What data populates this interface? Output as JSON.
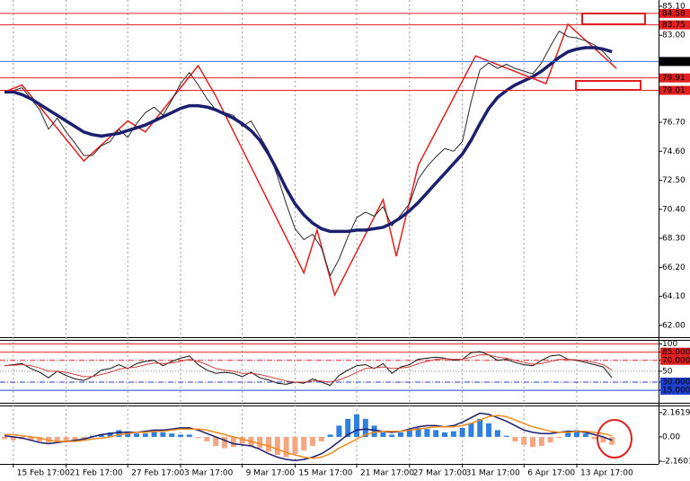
{
  "chart_data": [
    {
      "type": "line",
      "categories": [
        null,
        "15 Feb 17:00",
        null,
        null,
        null,
        null,
        null,
        "21 Feb 17:00",
        null,
        null,
        null,
        null,
        null,
        null,
        "27 Feb 17:00",
        null,
        null,
        null,
        null,
        null,
        "3 Mar 17:00",
        null,
        null,
        null,
        null,
        null,
        null,
        "9 Mar 17:00",
        null,
        null,
        null,
        null,
        null,
        "15 Mar 17:00",
        null,
        null,
        null,
        null,
        null,
        null,
        "21 Mar 17:00",
        null,
        null,
        null,
        null,
        null,
        "27 Mar 17:00",
        null,
        null,
        null,
        null,
        null,
        "31 Mar 17:00",
        null,
        null,
        null,
        null,
        null,
        null,
        "6 Apr 17:00",
        null,
        null,
        null,
        null,
        null,
        "13 Apr 17:00",
        null,
        null,
        null,
        null
      ],
      "ylim": [
        61.15,
        85.55
      ],
      "yticks": [
        {
          "value": 85.1,
          "label": "85.10"
        },
        {
          "value": 83,
          "label": "83.00"
        },
        {
          "value": 76.7,
          "label": "76.70"
        },
        {
          "value": 74.6,
          "label": "74.60"
        },
        {
          "value": 72.5,
          "label": "72.50"
        },
        {
          "value": 70.4,
          "label": "70.40"
        },
        {
          "value": 68.3,
          "label": "68.30"
        },
        {
          "value": 66.2,
          "label": "66.20"
        },
        {
          "value": 64.1,
          "label": "64.10"
        },
        {
          "value": 62,
          "label": "62.00"
        }
      ],
      "series": [
        {
          "color": "#2a2a2a",
          "width": 1,
          "values": [
            78.8,
            79.0,
            79.2,
            78.4,
            77.6,
            76.2,
            77.0,
            76.0,
            75.2,
            74.3,
            74.3,
            75.0,
            75.3,
            76.2,
            75.6,
            76.6,
            77.4,
            77.8,
            77.2,
            78.3,
            79.5,
            80.3,
            79.4,
            78.4,
            77.6,
            77.4,
            77.2,
            76.4,
            76.8,
            75.7,
            74.6,
            72.8,
            70.8,
            69.0,
            68.2,
            68.6,
            67.6,
            65.6,
            66.8,
            68.4,
            69.8,
            70.2,
            69.9,
            70.6,
            69.2,
            70.0,
            70.8,
            72.6,
            73.5,
            74.2,
            74.8,
            74.6,
            75.3,
            78.2,
            80.5,
            81.0,
            80.6,
            80.9,
            80.6,
            80.4,
            80.2,
            81.0,
            82.2,
            83.3,
            82.9,
            82.8,
            82.6,
            82.3,
            81.8,
            81.1
          ]
        },
        {
          "color": "#1b1f6e",
          "width": 3.5,
          "values": [
            78.9,
            78.9,
            78.7,
            78.4,
            78.0,
            77.6,
            77.2,
            76.8,
            76.4,
            76.0,
            75.8,
            75.7,
            75.8,
            75.9,
            76.1,
            76.3,
            76.5,
            76.8,
            77.1,
            77.4,
            77.7,
            77.9,
            77.9,
            77.8,
            77.6,
            77.3,
            77.0,
            76.6,
            76.1,
            75.4,
            74.4,
            73.2,
            71.9,
            70.8,
            70.0,
            69.4,
            69.0,
            68.8,
            68.8,
            68.8,
            68.9,
            68.9,
            69.0,
            69.1,
            69.4,
            69.8,
            70.3,
            70.9,
            71.6,
            72.3,
            73.0,
            73.7,
            74.4,
            75.4,
            76.6,
            77.7,
            78.5,
            79.0,
            79.4,
            79.7,
            80.0,
            80.4,
            80.9,
            81.4,
            81.8,
            82.0,
            82.1,
            82.1,
            82.0,
            81.8
          ]
        }
      ],
      "zigzag": {
        "color": "#e02020",
        "x": [
          0,
          2,
          9,
          14,
          16,
          22,
          24,
          34,
          35.5,
          37.5,
          43,
          44.5,
          47,
          53.5,
          61.5,
          64,
          69.5
        ],
        "values": [
          78.9,
          79.4,
          73.9,
          76.8,
          76.0,
          80.8,
          78.6,
          65.8,
          68.9,
          64.2,
          71.1,
          67.0,
          73.6,
          81.5,
          79.5,
          83.8,
          80.6
        ]
      },
      "levels": [
        {
          "value": 84.58,
          "label": "84.58"
        },
        {
          "value": 83.75,
          "label": "83.75"
        },
        {
          "value": 79.91,
          "label": "79.91"
        },
        {
          "value": 79.01,
          "label": "79.01"
        }
      ],
      "level_color": "#e02020",
      "current": {
        "value": 81.1,
        "label": "81.10",
        "color": "#4a6fd8"
      }
    },
    {
      "type": "line",
      "ylim": [
        -8,
        106
      ],
      "yticks": [
        100,
        {
          "value": 85,
          "label": "85.0000"
        },
        {
          "value": 70,
          "label": "70.0000"
        },
        50,
        {
          "value": 30,
          "label": "30.0000"
        },
        {
          "value": 15,
          "label": "15.0000"
        }
      ],
      "series": [
        {
          "color": "#111111",
          "width": 1,
          "values": [
            60,
            62,
            64,
            55,
            48,
            38,
            50,
            42,
            36,
            33,
            40,
            52,
            55,
            62,
            55,
            64,
            68,
            70,
            60,
            68,
            74,
            78,
            62,
            52,
            46,
            48,
            46,
            40,
            48,
            38,
            34,
            28,
            26,
            30,
            28,
            36,
            30,
            24,
            42,
            52,
            60,
            62,
            55,
            64,
            46,
            58,
            62,
            72,
            74,
            76,
            74,
            70,
            72,
            84,
            86,
            80,
            70,
            72,
            66,
            62,
            60,
            70,
            78,
            80,
            72,
            70,
            66,
            62,
            58,
            38
          ]
        },
        {
          "color": "#d04040",
          "width": 1,
          "values": [
            60,
            61,
            62,
            60,
            56,
            50,
            50,
            48,
            44,
            40,
            40,
            44,
            48,
            54,
            56,
            58,
            62,
            65,
            64,
            65,
            68,
            72,
            68,
            62,
            55,
            52,
            50,
            46,
            46,
            44,
            40,
            36,
            32,
            30,
            30,
            32,
            32,
            30,
            34,
            40,
            48,
            55,
            56,
            58,
            55,
            56,
            58,
            64,
            68,
            72,
            73,
            72,
            72,
            76,
            80,
            80,
            76,
            74,
            70,
            66,
            63,
            64,
            68,
            72,
            72,
            71,
            69,
            66,
            62,
            52
          ]
        }
      ]
    },
    {
      "type": "macd",
      "ylim": [
        -2.4,
        2.71
      ],
      "yticks": [
        2.1619,
        {
          "value": 0,
          "label": "0.00"
        },
        -2.1601
      ],
      "histogram": {
        "positive": "#2f7fe0",
        "negative": "#f4a582",
        "values": [
          -0.2,
          -0.3,
          -0.2,
          -0.3,
          -0.4,
          -0.5,
          -0.4,
          -0.5,
          -0.3,
          -0.2,
          0.1,
          0.2,
          0.4,
          0.6,
          0.5,
          0.3,
          0.3,
          0.5,
          0.4,
          0.3,
          0.2,
          0.2,
          -0.1,
          -0.4,
          -0.8,
          -1.0,
          -0.9,
          -0.6,
          -0.8,
          -1.0,
          -1.3,
          -1.6,
          -1.8,
          -1.5,
          -1.2,
          -0.8,
          -0.4,
          0.2,
          1.0,
          1.6,
          2.0,
          1.6,
          1.0,
          0.4,
          0.2,
          0.4,
          0.6,
          0.8,
          0.7,
          0.6,
          0.4,
          0.5,
          0.8,
          1.2,
          1.6,
          1.2,
          0.6,
          0.1,
          -0.4,
          -0.7,
          -0.9,
          -0.8,
          -0.5,
          -0.1,
          0.4,
          0.6,
          0.3,
          -0.2,
          -0.5,
          -0.7
        ]
      },
      "series": [
        {
          "color": "#1b1f6e",
          "width": 1.5,
          "values": [
            0.1,
            0.0,
            -0.1,
            -0.3,
            -0.5,
            -0.6,
            -0.5,
            -0.4,
            -0.3,
            -0.2,
            0.0,
            0.2,
            0.3,
            0.4,
            0.4,
            0.4,
            0.5,
            0.6,
            0.6,
            0.7,
            0.8,
            0.8,
            0.6,
            0.3,
            0.0,
            -0.3,
            -0.6,
            -0.7,
            -0.8,
            -1.1,
            -1.5,
            -1.8,
            -2.0,
            -2.1,
            -2.0,
            -1.8,
            -1.5,
            -1.0,
            -0.4,
            0.2,
            0.6,
            0.7,
            0.6,
            0.5,
            0.4,
            0.5,
            0.7,
            0.9,
            1.0,
            1.0,
            0.9,
            1.0,
            1.3,
            1.7,
            2.1,
            2.0,
            1.7,
            1.4,
            1.0,
            0.6,
            0.4,
            0.3,
            0.3,
            0.4,
            0.5,
            0.5,
            0.4,
            0.2,
            0.0,
            -0.3
          ]
        },
        {
          "color": "#f08a1c",
          "width": 1.5,
          "values": [
            0.2,
            0.2,
            0.1,
            0.0,
            -0.1,
            -0.3,
            -0.4,
            -0.4,
            -0.4,
            -0.3,
            -0.2,
            -0.1,
            0.0,
            0.2,
            0.3,
            0.4,
            0.4,
            0.5,
            0.5,
            0.6,
            0.7,
            0.7,
            0.7,
            0.6,
            0.4,
            0.2,
            0.0,
            -0.2,
            -0.4,
            -0.6,
            -0.8,
            -1.1,
            -1.4,
            -1.6,
            -1.8,
            -1.9,
            -1.8,
            -1.5,
            -1.0,
            -0.6,
            -0.2,
            0.2,
            0.4,
            0.5,
            0.5,
            0.5,
            0.6,
            0.7,
            0.8,
            0.9,
            0.9,
            0.9,
            1.0,
            1.2,
            1.5,
            1.8,
            1.9,
            1.8,
            1.5,
            1.2,
            0.9,
            0.7,
            0.5,
            0.4,
            0.4,
            0.5,
            0.5,
            0.4,
            0.3,
            0.1
          ]
        }
      ]
    }
  ]
}
